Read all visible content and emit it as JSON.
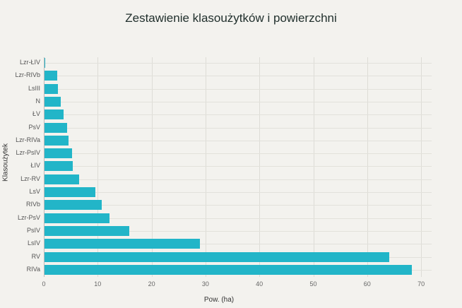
{
  "chart_data": {
    "type": "bar",
    "orientation": "horizontal",
    "title": "Zestawienie klasoużytków i powierzchni",
    "xlabel": "Pow. (ha)",
    "ylabel": "Klasoużytek",
    "xlim": [
      0,
      72
    ],
    "xticks": [
      0,
      10,
      20,
      30,
      40,
      50,
      60,
      70
    ],
    "grid": true,
    "bar_color": "#22b5c8",
    "categories": [
      "Lzr-ŁIV",
      "Lzr-RIVb",
      "LsIII",
      "N",
      "ŁV",
      "PsV",
      "Lzr-RIVa",
      "Lzr-PsIV",
      "ŁIV",
      "Lzr-RV",
      "LsV",
      "RIVb",
      "Lzr-PsV",
      "PsIV",
      "LsIV",
      "RV",
      "RIVa"
    ],
    "values": [
      0.2,
      2.5,
      2.6,
      3.1,
      3.7,
      4.3,
      4.6,
      5.2,
      5.4,
      6.5,
      9.6,
      10.8,
      12.2,
      15.8,
      29.0,
      64.1,
      68.3
    ]
  }
}
